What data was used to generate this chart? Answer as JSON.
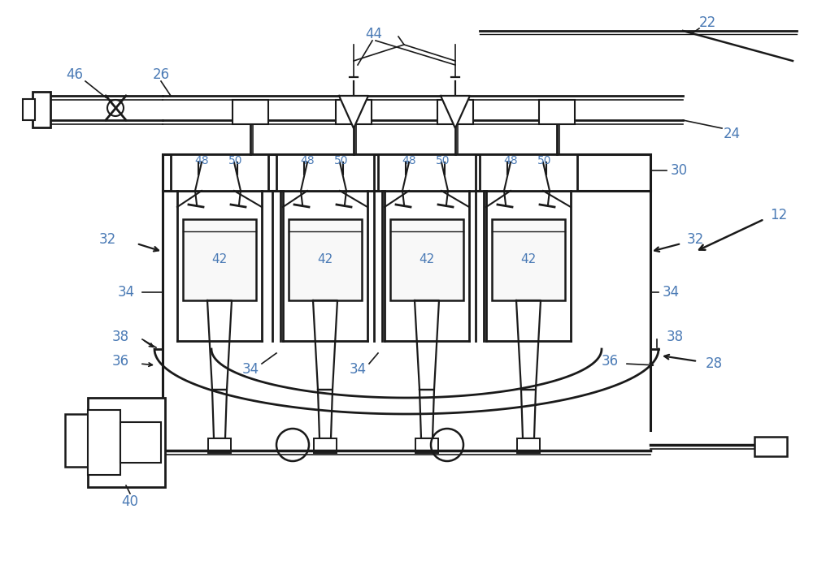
{
  "bg_color": "#ffffff",
  "line_color": "#1a1a1a",
  "label_color": "#4a7ab5",
  "lw": 1.6,
  "lw_thin": 1.0,
  "fig_width": 10.0,
  "fig_height": 7.12,
  "dpi": 100
}
